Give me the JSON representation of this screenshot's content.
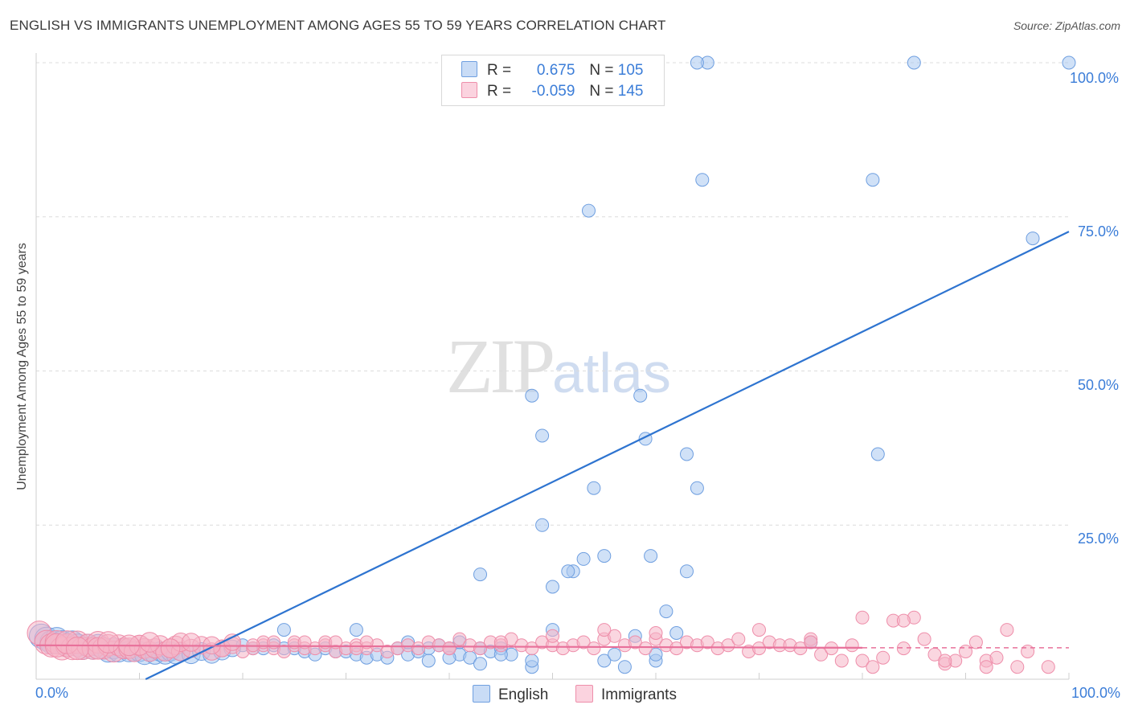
{
  "header": {
    "title": "ENGLISH VS IMMIGRANTS UNEMPLOYMENT AMONG AGES 55 TO 59 YEARS CORRELATION CHART",
    "source": "Source: ZipAtlas.com"
  },
  "watermark": {
    "zip": "ZIP",
    "atlas": "atlas"
  },
  "legend": {
    "r_label": "R =",
    "n_label": "N =",
    "rows": [
      {
        "name": "English",
        "r": "0.675",
        "n": "105",
        "color": "#a9c8f0"
      },
      {
        "name": "Immigrants",
        "r": "-0.059",
        "n": "145",
        "color": "#f5b4c6"
      }
    ]
  },
  "chart_data": {
    "type": "scatter",
    "title": "ENGLISH VS IMMIGRANTS UNEMPLOYMENT AMONG AGES 55 TO 59 YEARS CORRELATION CHART",
    "xlabel": "",
    "ylabel": "Unemployment Among Ages 55 to 59 years",
    "xlim": [
      0,
      100
    ],
    "ylim": [
      0,
      100
    ],
    "x_tick_labels": [
      "0.0%",
      "100.0%"
    ],
    "y_tick_values": [
      25,
      50,
      75,
      100
    ],
    "y_tick_labels": [
      "25.0%",
      "50.0%",
      "75.0%",
      "100.0%"
    ],
    "grid": true,
    "legend_position": "top-center",
    "series": [
      {
        "name": "English",
        "color": "#a9c8f0",
        "stroke": "#6f9fe0",
        "trend": {
          "x": [
            10.6,
            100
          ],
          "y": [
            0,
            72.6
          ],
          "color": "#2e74d0"
        },
        "points": [
          [
            0.5,
            7
          ],
          [
            1,
            6.5
          ],
          [
            1.5,
            6
          ],
          [
            2,
            6.5
          ],
          [
            2.5,
            6
          ],
          [
            3,
            5.5
          ],
          [
            3.5,
            6
          ],
          [
            4,
            5.5
          ],
          [
            4.5,
            5
          ],
          [
            5,
            5.5
          ],
          [
            5.5,
            5
          ],
          [
            6,
            5.5
          ],
          [
            6.5,
            5
          ],
          [
            7,
            4.5
          ],
          [
            7.5,
            5
          ],
          [
            8,
            4.5
          ],
          [
            8.5,
            5
          ],
          [
            9,
            4.5
          ],
          [
            9.5,
            4.5
          ],
          [
            10,
            4.5
          ],
          [
            10.5,
            4
          ],
          [
            11,
            4.5
          ],
          [
            11.5,
            4
          ],
          [
            12,
            4.5
          ],
          [
            12.5,
            4
          ],
          [
            13,
            4.5
          ],
          [
            13.5,
            4
          ],
          [
            14,
            4.5
          ],
          [
            15,
            4
          ],
          [
            16,
            4.5
          ],
          [
            17,
            4
          ],
          [
            18,
            4.5
          ],
          [
            19,
            5
          ],
          [
            20,
            5.5
          ],
          [
            21,
            5
          ],
          [
            22,
            5
          ],
          [
            23,
            5.5
          ],
          [
            24,
            5
          ],
          [
            25,
            5
          ],
          [
            26,
            4.5
          ],
          [
            27,
            4
          ],
          [
            28,
            5
          ],
          [
            29,
            4.5
          ],
          [
            30,
            4.5
          ],
          [
            31,
            4
          ],
          [
            32,
            3.5
          ],
          [
            33,
            4
          ],
          [
            34,
            3.5
          ],
          [
            35,
            5
          ],
          [
            36,
            4
          ],
          [
            37,
            4.5
          ],
          [
            38,
            5
          ],
          [
            39,
            5.5
          ],
          [
            40,
            5
          ],
          [
            41,
            4
          ],
          [
            42,
            3.5
          ],
          [
            43,
            5
          ],
          [
            44,
            4.5
          ],
          [
            45,
            5
          ],
          [
            46,
            4
          ],
          [
            24,
            8
          ],
          [
            31,
            8
          ],
          [
            36,
            6
          ],
          [
            38,
            3
          ],
          [
            40,
            3.5
          ],
          [
            41,
            6
          ],
          [
            43,
            2.5
          ],
          [
            45,
            4
          ],
          [
            48,
            2
          ],
          [
            48,
            3
          ],
          [
            43,
            17
          ],
          [
            49,
            25
          ],
          [
            48,
            46
          ],
          [
            49,
            39.5
          ],
          [
            50,
            15
          ],
          [
            52,
            17.5
          ],
          [
            53,
            19.5
          ],
          [
            51.5,
            17.5
          ],
          [
            55,
            20
          ],
          [
            54,
            31
          ],
          [
            53.5,
            76
          ],
          [
            58.5,
            46
          ],
          [
            59,
            39
          ],
          [
            59.5,
            20
          ],
          [
            58,
            7
          ],
          [
            57,
            2
          ],
          [
            55,
            3
          ],
          [
            62,
            7.5
          ],
          [
            63,
            17.5
          ],
          [
            64,
            31
          ],
          [
            63,
            36.5
          ],
          [
            61,
            11
          ],
          [
            50,
            8
          ],
          [
            56,
            4
          ],
          [
            60,
            3
          ],
          [
            65,
            100
          ],
          [
            64.5,
            81
          ],
          [
            85,
            100
          ],
          [
            64,
            100
          ],
          [
            81,
            81
          ],
          [
            81.5,
            36.5
          ],
          [
            96.5,
            71.5
          ],
          [
            100,
            100
          ],
          [
            75,
            6
          ],
          [
            60,
            4
          ]
        ]
      },
      {
        "name": "Immigrants",
        "color": "#f5b4c6",
        "stroke": "#ee8eaa",
        "trend": {
          "x": [
            0,
            80
          ],
          "y": [
            5.5,
            5.1
          ],
          "dash_x": [
            80,
            100
          ],
          "color": "#e8709a"
        },
        "points": [
          [
            0.3,
            7.5
          ],
          [
            1,
            6
          ],
          [
            1.5,
            5.5
          ],
          [
            2,
            6
          ],
          [
            2.5,
            5
          ],
          [
            3,
            5.5
          ],
          [
            3.5,
            5
          ],
          [
            4,
            6
          ],
          [
            4.5,
            5
          ],
          [
            5,
            5.5
          ],
          [
            5.5,
            5
          ],
          [
            6,
            6
          ],
          [
            6.5,
            5
          ],
          [
            7,
            5.5
          ],
          [
            7.5,
            4.5
          ],
          [
            8,
            5.5
          ],
          [
            8.5,
            5
          ],
          [
            9,
            5
          ],
          [
            9.5,
            4.5
          ],
          [
            10,
            5.5
          ],
          [
            10.5,
            5
          ],
          [
            11,
            4.5
          ],
          [
            11.5,
            5
          ],
          [
            12,
            5.5
          ],
          [
            12.5,
            4.5
          ],
          [
            13,
            5
          ],
          [
            13.5,
            5.5
          ],
          [
            14,
            4.5
          ],
          [
            15,
            5
          ],
          [
            16,
            5.5
          ],
          [
            17,
            4.5
          ],
          [
            18,
            5
          ],
          [
            19,
            5.5
          ],
          [
            20,
            4.5
          ],
          [
            21,
            5
          ],
          [
            22,
            5.5
          ],
          [
            23,
            5
          ],
          [
            24,
            4.5
          ],
          [
            25,
            5.5
          ],
          [
            26,
            5
          ],
          [
            27,
            5
          ],
          [
            28,
            5.5
          ],
          [
            29,
            4.5
          ],
          [
            30,
            5
          ],
          [
            31,
            5.5
          ],
          [
            32,
            5
          ],
          [
            33,
            5.5
          ],
          [
            34,
            4.5
          ],
          [
            35,
            5
          ],
          [
            36,
            5.5
          ],
          [
            37,
            5
          ],
          [
            38,
            6
          ],
          [
            39,
            5.5
          ],
          [
            40,
            5
          ],
          [
            41,
            6.5
          ],
          [
            42,
            5.5
          ],
          [
            43,
            5
          ],
          [
            44,
            6
          ],
          [
            45,
            5.5
          ],
          [
            46,
            6.5
          ],
          [
            47,
            5.5
          ],
          [
            48,
            5
          ],
          [
            49,
            6
          ],
          [
            50,
            5.5
          ],
          [
            51,
            5
          ],
          [
            52,
            5.5
          ],
          [
            53,
            6
          ],
          [
            54,
            5
          ],
          [
            55,
            6.5
          ],
          [
            56,
            7
          ],
          [
            57,
            5.5
          ],
          [
            58,
            6
          ],
          [
            59,
            5
          ],
          [
            60,
            6.5
          ],
          [
            61,
            5.5
          ],
          [
            62,
            5
          ],
          [
            63,
            6
          ],
          [
            64,
            5.5
          ],
          [
            65,
            6
          ],
          [
            66,
            5
          ],
          [
            67,
            5.5
          ],
          [
            68,
            6.5
          ],
          [
            69,
            4.5
          ],
          [
            70,
            5
          ],
          [
            71,
            6
          ],
          [
            72,
            5.5
          ],
          [
            73,
            5.5
          ],
          [
            74,
            5
          ],
          [
            75,
            6.5
          ],
          [
            76,
            4
          ],
          [
            77,
            5
          ],
          [
            78,
            3
          ],
          [
            79,
            5.5
          ],
          [
            80,
            3
          ],
          [
            81,
            2
          ],
          [
            82,
            3.5
          ],
          [
            83,
            9.5
          ],
          [
            84,
            5
          ],
          [
            85,
            10
          ],
          [
            86,
            6.5
          ],
          [
            87,
            4
          ],
          [
            88,
            2.5
          ],
          [
            89,
            3
          ],
          [
            90,
            4.5
          ],
          [
            91,
            6
          ],
          [
            92,
            3
          ],
          [
            93,
            3.5
          ],
          [
            94,
            8
          ],
          [
            95,
            2
          ],
          [
            96,
            4.5
          ],
          [
            98,
            2
          ],
          [
            60,
            7.5
          ],
          [
            55,
            8
          ],
          [
            50,
            7
          ],
          [
            45,
            6
          ],
          [
            40,
            5
          ],
          [
            70,
            8
          ],
          [
            75,
            6
          ],
          [
            80,
            10
          ],
          [
            84,
            9.5
          ],
          [
            88,
            3
          ],
          [
            92,
            2
          ],
          [
            32,
            6
          ],
          [
            28,
            6
          ],
          [
            25,
            6
          ],
          [
            22,
            6
          ],
          [
            18,
            5
          ],
          [
            14,
            6
          ],
          [
            10,
            5.5
          ],
          [
            6,
            5
          ],
          [
            2,
            5.5
          ],
          [
            3,
            6
          ],
          [
            4,
            5
          ],
          [
            7,
            6
          ],
          [
            9,
            5.5
          ],
          [
            11,
            6
          ],
          [
            13,
            5
          ],
          [
            15,
            6
          ],
          [
            17,
            5.5
          ],
          [
            19,
            6
          ],
          [
            21,
            5.5
          ],
          [
            23,
            6
          ],
          [
            26,
            6
          ],
          [
            29,
            6
          ],
          [
            31,
            5
          ]
        ]
      }
    ]
  }
}
